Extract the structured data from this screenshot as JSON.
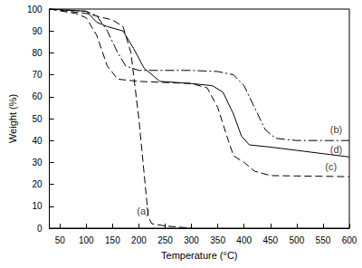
{
  "chart_data": {
    "type": "line",
    "x_label": "Temperature (°C)",
    "y_label": "Weight (%)",
    "xlim": [
      30,
      600
    ],
    "xticks": [
      50,
      100,
      150,
      200,
      250,
      300,
      350,
      400,
      450,
      500,
      550,
      600
    ],
    "ylim": [
      0,
      100
    ],
    "yticks": [
      0,
      10,
      20,
      30,
      40,
      50,
      60,
      70,
      80,
      90,
      100
    ],
    "grid": false,
    "series": [
      {
        "name": "(a)",
        "color": "#000000",
        "line_style": "dashed",
        "x": [
          30,
          50,
          100,
          150,
          170,
          185,
          200,
          210,
          218,
          225,
          250,
          300
        ],
        "values": [
          100,
          99.5,
          98,
          95,
          92,
          80,
          50,
          25,
          5,
          2,
          1,
          0
        ]
      },
      {
        "name": "(b)",
        "color": "#000000",
        "line_style": "dashdot",
        "x": [
          30,
          100,
          120,
          140,
          160,
          175,
          200,
          300,
          350,
          380,
          400,
          420,
          440,
          460,
          500,
          600
        ],
        "values": [
          100,
          99,
          97,
          90,
          80,
          74,
          72,
          72,
          71.5,
          70,
          65,
          55,
          45,
          41,
          40,
          40
        ]
      },
      {
        "name": "(c)",
        "color": "#000000",
        "line_style": "dashed",
        "x": [
          30,
          80,
          100,
          120,
          140,
          160,
          200,
          300,
          330,
          350,
          370,
          380,
          400,
          420,
          450,
          600
        ],
        "values": [
          100,
          98,
          96,
          88,
          74,
          68,
          67,
          66,
          64,
          55,
          40,
          33,
          30,
          26,
          24,
          23.5
        ]
      },
      {
        "name": "(d)",
        "color": "#000000",
        "line_style": "solid",
        "x": [
          30,
          100,
          120,
          140,
          170,
          190,
          210,
          240,
          300,
          340,
          360,
          380,
          395,
          410,
          450,
          500,
          600
        ],
        "values": [
          100,
          99,
          94,
          92,
          90,
          82,
          73,
          67,
          66,
          65,
          62,
          52,
          42,
          38,
          37,
          35.5,
          32.5
        ]
      }
    ],
    "annotations": [
      {
        "text": "(a)",
        "x": 208,
        "y": 8
      },
      {
        "text": "(b)",
        "x": 575,
        "y": 45
      },
      {
        "text": "(d)",
        "x": 575,
        "y": 36
      },
      {
        "text": "(c)",
        "x": 565,
        "y": 28
      }
    ]
  }
}
